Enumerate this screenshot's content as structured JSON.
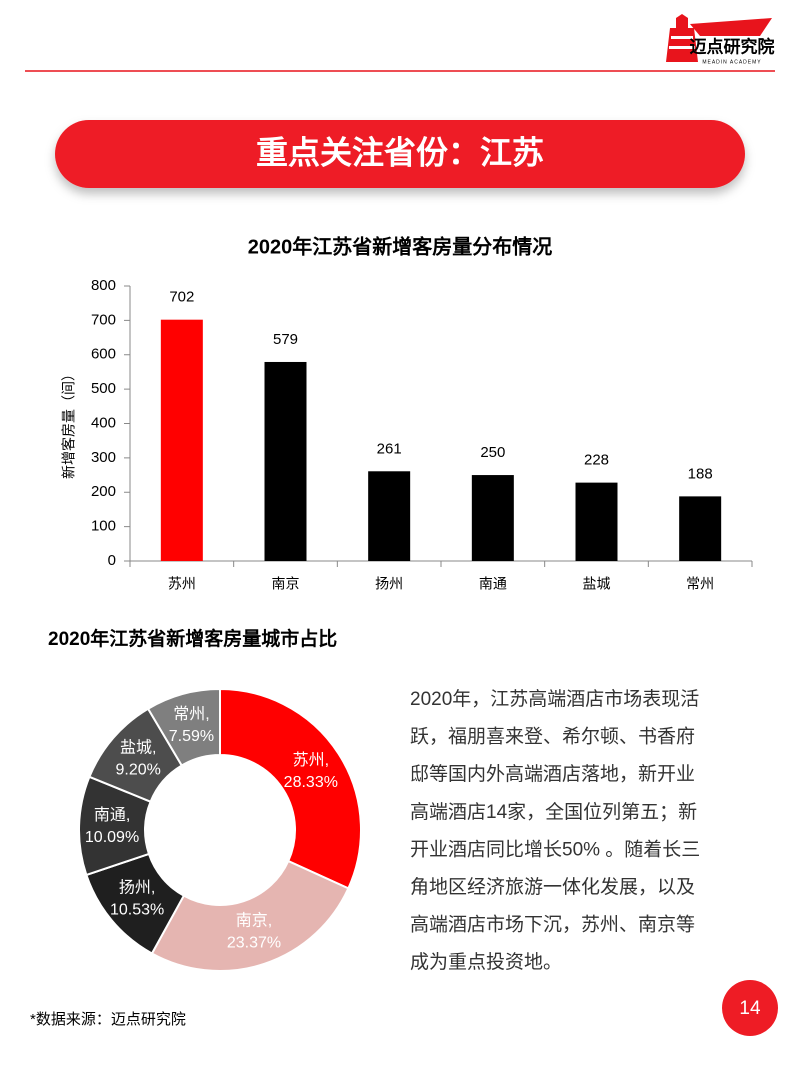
{
  "header": {
    "logo_text": "迈点研究院",
    "logo_subtext": "MEADIN ACADEMY"
  },
  "banner": "重点关注省份：江苏",
  "chart_data": [
    {
      "type": "bar",
      "title": "2020年江苏省新增客房量分布情况",
      "ylabel": "新增客房量（间）",
      "categories": [
        "苏州",
        "南京",
        "扬州",
        "南通",
        "盐城",
        "常州"
      ],
      "values": [
        702,
        579,
        261,
        250,
        228,
        188
      ],
      "colors": [
        "#ff0000",
        "#000000",
        "#000000",
        "#000000",
        "#000000",
        "#000000"
      ],
      "ylim": [
        0,
        800
      ],
      "yticks": [
        0,
        100,
        200,
        300,
        400,
        500,
        600,
        700,
        800
      ]
    },
    {
      "type": "donut",
      "title": "2020年江苏省新增客房量城市占比",
      "categories": [
        "苏州,",
        "南京,",
        "扬州,",
        "南通,",
        "盐城,",
        "常州,"
      ],
      "values": [
        28.33,
        23.37,
        10.53,
        10.09,
        9.2,
        7.59
      ],
      "value_labels": [
        "28.33%",
        "23.37%",
        "10.53%",
        "10.09%",
        "9.20%",
        "7.59%"
      ],
      "colors": [
        "#ff0000",
        "#e5b5b1",
        "#1f1f1f",
        "#333333",
        "#4d4d4d",
        "#7f7f7f"
      ]
    }
  ],
  "paragraph": [
    "2020年，江苏高端酒店市场表现活",
    "跃，福朋喜来登、希尔顿、书香府",
    "邸等国内外高端酒店落地，新开业",
    "高端酒店14家，全国位列第五；新",
    "开业酒店同比增长50% 。随着长三",
    "角地区经济旅游一体化发展，以及",
    "高端酒店市场下沉，苏州、南京等",
    "成为重点投资地。"
  ],
  "source": "*数据来源：迈点研究院",
  "page_number": "14"
}
